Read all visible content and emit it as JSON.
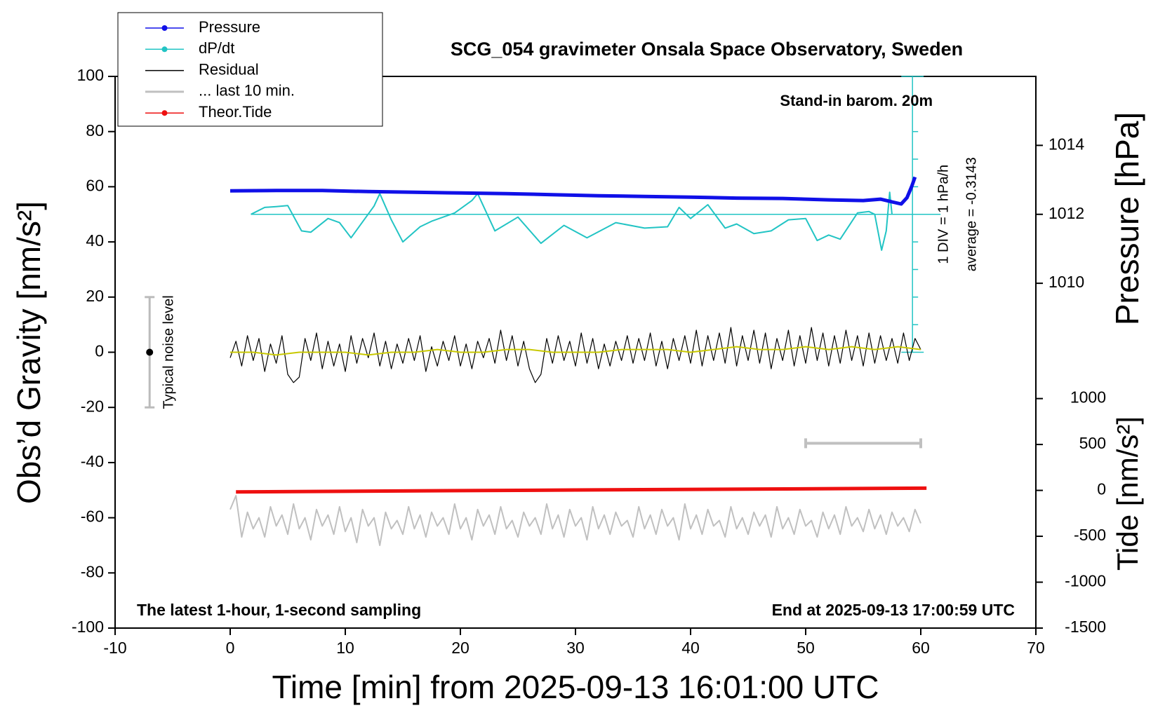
{
  "chart_data": {
    "type": "line",
    "title": "SCG_054 gravimeter Onsala Space Observatory, Sweden",
    "annotations": {
      "top_right": "Stand-in barom. 20m",
      "bottom_left": "The latest 1-hour, 1-second sampling",
      "bottom_right": "End at 2025-09-13 17:00:59 UTC",
      "dpdt_scale": "1 DIV = 1 hPa/h",
      "dpdt_average": "average = -0.3143"
    },
    "xlabel": "Time [min] from 2025-09-13 16:01:00 UTC",
    "ylabel": "Obs’d Gravity [nm/s²]",
    "y2label": "Pressure [hPa]",
    "tide_label": "Tide [nm/s²]",
    "xlim": [
      -10,
      70
    ],
    "xticks": [
      -10,
      0,
      10,
      20,
      30,
      40,
      50,
      60,
      70
    ],
    "ylim": [
      -100,
      100
    ],
    "yticks": [
      -100,
      -80,
      -60,
      -40,
      -20,
      0,
      20,
      40,
      60,
      80,
      100
    ],
    "y2lim": [
      1008,
      1016
    ],
    "y2ticks": [
      1010,
      1012,
      1014
    ],
    "tide_lim": [
      -1500,
      1000
    ],
    "tide_ticks": [
      -1500,
      -1000,
      -500,
      0,
      500,
      1000
    ],
    "dpdt_lim": [
      -5,
      5
    ],
    "dpdt_ticks": [
      -5,
      -4,
      -3,
      -2,
      -1,
      0,
      1,
      2,
      3,
      4,
      5
    ],
    "dpdt_color": "#22c4c4",
    "legend": "upper left",
    "noise": {
      "label": "Typical noise level",
      "x": -7,
      "y": 0,
      "error": 20
    },
    "series": [
      {
        "name": "Pressure",
        "color": "#1010e8",
        "axis": "y2",
        "marker": true,
        "x": [
          0,
          4,
          8,
          12,
          16,
          20,
          24,
          28,
          32,
          36,
          40,
          44,
          48,
          52,
          55,
          56.5,
          57.5,
          58.3,
          58.8,
          59.2,
          59.5
        ],
        "values": [
          1012.68,
          1012.69,
          1012.69,
          1012.66,
          1012.64,
          1012.62,
          1012.6,
          1012.57,
          1012.54,
          1012.52,
          1012.5,
          1012.47,
          1012.46,
          1012.42,
          1012.4,
          1012.44,
          1012.36,
          1012.3,
          1012.48,
          1012.8,
          1013.08
        ]
      },
      {
        "name": "dP/dt",
        "color": "#22c4c4",
        "axis": "dpdt",
        "marker": true,
        "x": [
          1.8,
          3,
          4,
          5,
          6.2,
          7,
          8.5,
          9.5,
          10.5,
          12.5,
          13,
          14,
          15,
          16.5,
          17.5,
          19.5,
          21,
          21.5,
          23,
          25,
          27,
          29,
          31,
          33.5,
          36,
          38,
          39,
          40,
          41.5,
          43,
          44,
          45.5,
          47,
          48.5,
          50,
          51,
          52,
          53,
          54.5,
          55.5,
          56,
          56.6,
          57,
          57.3,
          57.5
        ],
        "values": [
          0,
          0.25,
          0.28,
          0.32,
          -0.6,
          -0.65,
          -0.15,
          -0.3,
          -0.85,
          0.3,
          0.75,
          -0.2,
          -1.0,
          -0.45,
          -0.25,
          0.05,
          0.5,
          0.75,
          -0.6,
          -0.1,
          -1.05,
          -0.4,
          -0.85,
          -0.3,
          -0.5,
          -0.45,
          0.25,
          -0.15,
          0.35,
          -0.5,
          -0.35,
          -0.7,
          -0.6,
          -0.2,
          -0.15,
          -0.95,
          -0.75,
          -0.9,
          0.05,
          0.1,
          0,
          -1.3,
          -0.6,
          0.8,
          0
        ]
      },
      {
        "name": "Residual",
        "color": "#000000",
        "x": [
          0,
          0.5,
          1,
          1.5,
          2,
          2.5,
          3,
          3.5,
          4,
          4.5,
          5,
          5.5,
          6,
          6.5,
          7,
          7.5,
          8,
          8.5,
          9,
          9.5,
          10,
          10.5,
          11,
          11.5,
          12,
          12.5,
          13,
          13.5,
          14,
          14.5,
          15,
          15.5,
          16,
          16.5,
          17,
          17.5,
          18,
          18.5,
          19,
          19.5,
          20,
          20.5,
          21,
          21.5,
          22,
          22.5,
          23,
          23.5,
          24,
          24.5,
          25,
          25.5,
          26,
          26.5,
          27,
          27.5,
          28,
          28.5,
          29,
          29.5,
          30,
          30.5,
          31,
          31.5,
          32,
          32.5,
          33,
          33.5,
          34,
          34.5,
          35,
          35.5,
          36,
          36.5,
          37,
          37.5,
          38,
          38.5,
          39,
          39.5,
          40,
          40.5,
          41,
          41.5,
          42,
          42.5,
          43,
          43.5,
          44,
          44.5,
          45,
          45.5,
          46,
          46.5,
          47,
          47.5,
          48,
          48.5,
          49,
          49.5,
          50,
          50.5,
          51,
          51.5,
          52,
          52.5,
          53,
          53.5,
          54,
          54.5,
          55,
          55.5,
          56,
          56.5,
          57,
          57.5,
          58,
          58.5,
          59,
          59.5,
          60
        ],
        "values": [
          -2,
          4,
          -5,
          6,
          -3,
          5,
          -7,
          3,
          -4,
          6,
          -8,
          -11,
          -9,
          5,
          -3,
          7,
          -6,
          4,
          -5,
          3,
          -7,
          6,
          -4,
          5,
          -2,
          7,
          -5,
          4,
          -6,
          3,
          -4,
          5,
          -3,
          6,
          -7,
          2,
          -5,
          4,
          -3,
          6,
          -5,
          3,
          -6,
          4,
          -2,
          5,
          -4,
          8,
          -3,
          6,
          -5,
          4,
          -6,
          -11,
          -8,
          5,
          -4,
          6,
          -3,
          4,
          -5,
          7,
          -4,
          5,
          -6,
          3,
          -5,
          4,
          -3,
          6,
          -4,
          5,
          -3,
          7,
          -5,
          4,
          -6,
          5,
          -3,
          6,
          -4,
          8,
          -5,
          6,
          -3,
          7,
          -4,
          9,
          -5,
          6,
          -3,
          8,
          -4,
          7,
          -6,
          5,
          -3,
          8,
          -5,
          6,
          -4,
          9,
          -3,
          7,
          -5,
          6,
          -4,
          8,
          -3,
          6,
          -5,
          7,
          -4,
          6,
          -3,
          5,
          -4,
          7,
          -3,
          5,
          1
        ]
      },
      {
        "name": "... last 10 min.",
        "color": "#c0c0c0",
        "window": {
          "x": [
            50,
            60
          ],
          "y": -33
        },
        "x": [
          0,
          0.5,
          1,
          1.5,
          2,
          2.5,
          3,
          3.5,
          4,
          4.5,
          5,
          5.5,
          6,
          6.5,
          7,
          7.5,
          8,
          8.5,
          9,
          9.5,
          10,
          10.5,
          11,
          11.5,
          12,
          12.5,
          13,
          13.5,
          14,
          14.5,
          15,
          15.5,
          16,
          16.5,
          17,
          17.5,
          18,
          18.5,
          19,
          19.5,
          20,
          20.5,
          21,
          21.5,
          22,
          22.5,
          23,
          23.5,
          24,
          24.5,
          25,
          25.5,
          26,
          26.5,
          27,
          27.5,
          28,
          28.5,
          29,
          29.5,
          30,
          30.5,
          31,
          31.5,
          32,
          32.5,
          33,
          33.5,
          34,
          34.5,
          35,
          35.5,
          36,
          36.5,
          37,
          37.5,
          38,
          38.5,
          39,
          39.5,
          40,
          40.5,
          41,
          41.5,
          42,
          42.5,
          43,
          43.5,
          44,
          44.5,
          45,
          45.5,
          46,
          46.5,
          47,
          47.5,
          48,
          48.5,
          49,
          49.5,
          50,
          50.5,
          51,
          51.5,
          52,
          52.5,
          53,
          53.5,
          54,
          54.5,
          55,
          55.5,
          56,
          56.5,
          57,
          57.5,
          58,
          58.5,
          59,
          59.5,
          60
        ],
        "values": [
          -57,
          -52,
          -67,
          -58,
          -64,
          -60,
          -67,
          -56,
          -63,
          -59,
          -66,
          -55,
          -64,
          -60,
          -68,
          -57,
          -63,
          -59,
          -66,
          -56,
          -65,
          -60,
          -69,
          -57,
          -63,
          -60,
          -70,
          -58,
          -64,
          -61,
          -66,
          -56,
          -64,
          -59,
          -67,
          -58,
          -63,
          -60,
          -66,
          -55,
          -64,
          -60,
          -68,
          -57,
          -63,
          -59,
          -66,
          -56,
          -64,
          -61,
          -67,
          -58,
          -63,
          -60,
          -66,
          -55,
          -64,
          -59,
          -67,
          -57,
          -63,
          -60,
          -68,
          -56,
          -64,
          -59,
          -66,
          -58,
          -63,
          -61,
          -67,
          -56,
          -64,
          -59,
          -66,
          -57,
          -63,
          -60,
          -68,
          -55,
          -64,
          -59,
          -66,
          -57,
          -63,
          -61,
          -67,
          -56,
          -64,
          -60,
          -66,
          -58,
          -63,
          -59,
          -67,
          -56,
          -64,
          -60,
          -66,
          -57,
          -63,
          -61,
          -67,
          -58,
          -64,
          -59,
          -66,
          -56,
          -63,
          -60,
          -65,
          -57,
          -64,
          -59,
          -66,
          -58,
          -63,
          -60,
          -65,
          -57,
          -62
        ]
      },
      {
        "name": "Theor.Tide",
        "color": "#ee1010",
        "axis": "tide",
        "marker": true,
        "x": [
          0.5,
          30,
          60.5
        ],
        "values": [
          -16,
          4,
          24
        ]
      }
    ],
    "smoothed": {
      "color": "#c8c800",
      "x": [
        0,
        2,
        4,
        6,
        8,
        10,
        12,
        14,
        16,
        18,
        20,
        22,
        24,
        26,
        28,
        30,
        32,
        34,
        36,
        38,
        40,
        42,
        44,
        46,
        48,
        50,
        52,
        54,
        56,
        58,
        60
      ],
      "values": [
        0,
        0,
        -1,
        0,
        0,
        0,
        -1,
        0,
        0,
        1,
        0,
        0,
        1,
        1,
        0,
        0,
        0,
        1,
        1,
        1,
        0,
        1,
        2,
        1,
        1,
        2,
        1,
        2,
        1,
        2,
        1
      ]
    }
  }
}
